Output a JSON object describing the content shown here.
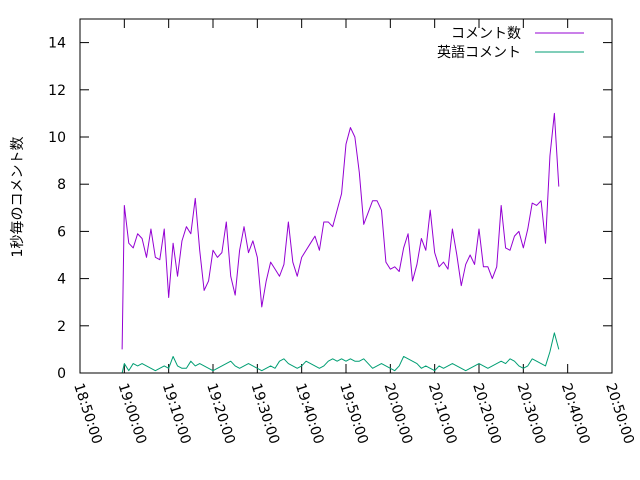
{
  "chart_data": {
    "type": "line",
    "title": "",
    "ylabel": "1秒毎のコメント数",
    "xlabel": "",
    "ylim": [
      0,
      15
    ],
    "yticks": [
      0,
      2,
      4,
      6,
      8,
      10,
      12,
      14
    ],
    "xlim": [
      "18:50:00",
      "20:50:00"
    ],
    "xticks": [
      "18:50:00",
      "19:00:00",
      "19:10:00",
      "19:20:00",
      "19:30:00",
      "19:40:00",
      "19:50:00",
      "20:00:00",
      "20:10:00",
      "20:20:00",
      "20:30:00",
      "20:40:00",
      "20:50:00"
    ],
    "grid": false,
    "legend": "top-right",
    "series": [
      {
        "name": "コメント数",
        "color": "#9400d3",
        "points": [
          [
            "18:59:30",
            1.0
          ],
          [
            "19:00:00",
            7.1
          ],
          [
            "19:01:00",
            5.5
          ],
          [
            "19:02:00",
            5.3
          ],
          [
            "19:03:00",
            5.9
          ],
          [
            "19:04:00",
            5.7
          ],
          [
            "19:05:00",
            4.9
          ],
          [
            "19:06:00",
            6.1
          ],
          [
            "19:07:00",
            4.9
          ],
          [
            "19:08:00",
            4.8
          ],
          [
            "19:09:00",
            6.1
          ],
          [
            "19:10:00",
            3.2
          ],
          [
            "19:11:00",
            5.5
          ],
          [
            "19:12:00",
            4.1
          ],
          [
            "19:13:00",
            5.6
          ],
          [
            "19:14:00",
            6.2
          ],
          [
            "19:15:00",
            5.9
          ],
          [
            "19:16:00",
            7.4
          ],
          [
            "19:17:00",
            5.2
          ],
          [
            "19:18:00",
            3.5
          ],
          [
            "19:19:00",
            3.9
          ],
          [
            "19:20:00",
            5.2
          ],
          [
            "19:21:00",
            4.9
          ],
          [
            "19:22:00",
            5.1
          ],
          [
            "19:23:00",
            6.4
          ],
          [
            "19:24:00",
            4.1
          ],
          [
            "19:25:00",
            3.3
          ],
          [
            "19:26:00",
            5.2
          ],
          [
            "19:27:00",
            6.2
          ],
          [
            "19:28:00",
            5.1
          ],
          [
            "19:29:00",
            5.6
          ],
          [
            "19:30:00",
            4.9
          ],
          [
            "19:31:00",
            2.8
          ],
          [
            "19:32:00",
            3.9
          ],
          [
            "19:33:00",
            4.7
          ],
          [
            "19:34:00",
            4.4
          ],
          [
            "19:35:00",
            4.1
          ],
          [
            "19:36:00",
            4.6
          ],
          [
            "19:37:00",
            6.4
          ],
          [
            "19:38:00",
            4.7
          ],
          [
            "19:39:00",
            4.1
          ],
          [
            "19:40:00",
            4.9
          ],
          [
            "19:41:00",
            5.2
          ],
          [
            "19:42:00",
            5.5
          ],
          [
            "19:43:00",
            5.8
          ],
          [
            "19:44:00",
            5.2
          ],
          [
            "19:45:00",
            6.4
          ],
          [
            "19:46:00",
            6.4
          ],
          [
            "19:47:00",
            6.2
          ],
          [
            "19:48:00",
            6.9
          ],
          [
            "19:49:00",
            7.6
          ],
          [
            "19:50:00",
            9.7
          ],
          [
            "19:51:00",
            10.4
          ],
          [
            "19:52:00",
            10.0
          ],
          [
            "19:53:00",
            8.5
          ],
          [
            "19:54:00",
            6.3
          ],
          [
            "19:55:00",
            6.8
          ],
          [
            "19:56:00",
            7.3
          ],
          [
            "19:57:00",
            7.3
          ],
          [
            "19:58:00",
            6.9
          ],
          [
            "19:59:00",
            4.7
          ],
          [
            "20:00:00",
            4.4
          ],
          [
            "20:01:00",
            4.5
          ],
          [
            "20:02:00",
            4.3
          ],
          [
            "20:03:00",
            5.3
          ],
          [
            "20:04:00",
            5.9
          ],
          [
            "20:05:00",
            3.9
          ],
          [
            "20:06:00",
            4.6
          ],
          [
            "20:07:00",
            5.7
          ],
          [
            "20:08:00",
            5.2
          ],
          [
            "20:09:00",
            6.9
          ],
          [
            "20:10:00",
            5.1
          ],
          [
            "20:11:00",
            4.5
          ],
          [
            "20:12:00",
            4.7
          ],
          [
            "20:13:00",
            4.4
          ],
          [
            "20:14:00",
            6.1
          ],
          [
            "20:15:00",
            5.0
          ],
          [
            "20:16:00",
            3.7
          ],
          [
            "20:17:00",
            4.6
          ],
          [
            "20:18:00",
            5.0
          ],
          [
            "20:19:00",
            4.6
          ],
          [
            "20:20:00",
            6.1
          ],
          [
            "20:21:00",
            4.5
          ],
          [
            "20:22:00",
            4.5
          ],
          [
            "20:23:00",
            4.0
          ],
          [
            "20:24:00",
            4.5
          ],
          [
            "20:25:00",
            7.1
          ],
          [
            "20:26:00",
            5.3
          ],
          [
            "20:27:00",
            5.2
          ],
          [
            "20:28:00",
            5.8
          ],
          [
            "20:29:00",
            6.0
          ],
          [
            "20:30:00",
            5.3
          ],
          [
            "20:31:00",
            6.1
          ],
          [
            "20:32:00",
            7.2
          ],
          [
            "20:33:00",
            7.1
          ],
          [
            "20:34:00",
            7.3
          ],
          [
            "20:35:00",
            5.5
          ],
          [
            "20:36:00",
            9.2
          ],
          [
            "20:37:00",
            11.0
          ],
          [
            "20:38:00",
            7.9
          ]
        ]
      },
      {
        "name": "英語コメント",
        "color": "#009e73",
        "points": [
          [
            "18:59:30",
            0.0
          ],
          [
            "19:00:00",
            0.4
          ],
          [
            "19:01:00",
            0.1
          ],
          [
            "19:02:00",
            0.4
          ],
          [
            "19:03:00",
            0.3
          ],
          [
            "19:04:00",
            0.4
          ],
          [
            "19:05:00",
            0.3
          ],
          [
            "19:06:00",
            0.2
          ],
          [
            "19:07:00",
            0.1
          ],
          [
            "19:08:00",
            0.2
          ],
          [
            "19:09:00",
            0.3
          ],
          [
            "19:10:00",
            0.2
          ],
          [
            "19:11:00",
            0.7
          ],
          [
            "19:12:00",
            0.3
          ],
          [
            "19:13:00",
            0.2
          ],
          [
            "19:14:00",
            0.2
          ],
          [
            "19:15:00",
            0.5
          ],
          [
            "19:16:00",
            0.3
          ],
          [
            "19:17:00",
            0.4
          ],
          [
            "19:18:00",
            0.3
          ],
          [
            "19:19:00",
            0.2
          ],
          [
            "19:20:00",
            0.1
          ],
          [
            "19:21:00",
            0.2
          ],
          [
            "19:22:00",
            0.3
          ],
          [
            "19:23:00",
            0.4
          ],
          [
            "19:24:00",
            0.5
          ],
          [
            "19:25:00",
            0.3
          ],
          [
            "19:26:00",
            0.2
          ],
          [
            "19:27:00",
            0.3
          ],
          [
            "19:28:00",
            0.4
          ],
          [
            "19:29:00",
            0.3
          ],
          [
            "19:30:00",
            0.2
          ],
          [
            "19:31:00",
            0.1
          ],
          [
            "19:32:00",
            0.2
          ],
          [
            "19:33:00",
            0.3
          ],
          [
            "19:34:00",
            0.2
          ],
          [
            "19:35:00",
            0.5
          ],
          [
            "19:36:00",
            0.6
          ],
          [
            "19:37:00",
            0.4
          ],
          [
            "19:38:00",
            0.3
          ],
          [
            "19:39:00",
            0.2
          ],
          [
            "19:40:00",
            0.3
          ],
          [
            "19:41:00",
            0.5
          ],
          [
            "19:42:00",
            0.4
          ],
          [
            "19:43:00",
            0.3
          ],
          [
            "19:44:00",
            0.2
          ],
          [
            "19:45:00",
            0.3
          ],
          [
            "19:46:00",
            0.5
          ],
          [
            "19:47:00",
            0.6
          ],
          [
            "19:48:00",
            0.5
          ],
          [
            "19:49:00",
            0.6
          ],
          [
            "19:50:00",
            0.5
          ],
          [
            "19:51:00",
            0.6
          ],
          [
            "19:52:00",
            0.5
          ],
          [
            "19:53:00",
            0.5
          ],
          [
            "19:54:00",
            0.6
          ],
          [
            "19:55:00",
            0.4
          ],
          [
            "19:56:00",
            0.2
          ],
          [
            "19:57:00",
            0.3
          ],
          [
            "19:58:00",
            0.4
          ],
          [
            "19:59:00",
            0.3
          ],
          [
            "20:00:00",
            0.2
          ],
          [
            "20:01:00",
            0.1
          ],
          [
            "20:02:00",
            0.3
          ],
          [
            "20:03:00",
            0.7
          ],
          [
            "20:04:00",
            0.6
          ],
          [
            "20:05:00",
            0.5
          ],
          [
            "20:06:00",
            0.4
          ],
          [
            "20:07:00",
            0.2
          ],
          [
            "20:08:00",
            0.3
          ],
          [
            "20:09:00",
            0.2
          ],
          [
            "20:10:00",
            0.1
          ],
          [
            "20:11:00",
            0.3
          ],
          [
            "20:12:00",
            0.2
          ],
          [
            "20:13:00",
            0.3
          ],
          [
            "20:14:00",
            0.4
          ],
          [
            "20:15:00",
            0.3
          ],
          [
            "20:16:00",
            0.2
          ],
          [
            "20:17:00",
            0.1
          ],
          [
            "20:18:00",
            0.2
          ],
          [
            "20:19:00",
            0.3
          ],
          [
            "20:20:00",
            0.4
          ],
          [
            "20:21:00",
            0.3
          ],
          [
            "20:22:00",
            0.2
          ],
          [
            "20:23:00",
            0.3
          ],
          [
            "20:24:00",
            0.4
          ],
          [
            "20:25:00",
            0.5
          ],
          [
            "20:26:00",
            0.4
          ],
          [
            "20:27:00",
            0.6
          ],
          [
            "20:28:00",
            0.5
          ],
          [
            "20:29:00",
            0.3
          ],
          [
            "20:30:00",
            0.2
          ],
          [
            "20:31:00",
            0.3
          ],
          [
            "20:32:00",
            0.6
          ],
          [
            "20:33:00",
            0.5
          ],
          [
            "20:34:00",
            0.4
          ],
          [
            "20:35:00",
            0.3
          ],
          [
            "20:36:00",
            0.9
          ],
          [
            "20:37:00",
            1.7
          ],
          [
            "20:38:00",
            1.0
          ]
        ]
      }
    ]
  }
}
